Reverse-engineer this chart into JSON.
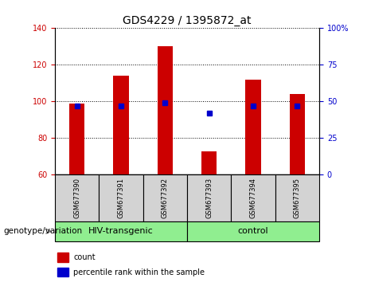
{
  "title": "GDS4229 / 1395872_at",
  "samples": [
    "GSM677390",
    "GSM677391",
    "GSM677392",
    "GSM677393",
    "GSM677394",
    "GSM677395"
  ],
  "count_values": [
    99,
    114,
    130,
    73,
    112,
    104
  ],
  "percentile_values": [
    47,
    47,
    49,
    42,
    47,
    47
  ],
  "ylim_left": [
    60,
    140
  ],
  "ylim_right": [
    0,
    100
  ],
  "yticks_left": [
    60,
    80,
    100,
    120,
    140
  ],
  "yticks_right": [
    0,
    25,
    50,
    75,
    100
  ],
  "ytick_labels_right": [
    "0",
    "25",
    "50",
    "75",
    "100%"
  ],
  "bar_color": "#cc0000",
  "dot_color": "#0000cc",
  "hiv_label": "HIV-transgenic",
  "control_label": "control",
  "hiv_color": "#90ee90",
  "control_color": "#90ee90",
  "group_label": "genotype/variation",
  "legend_count_label": "count",
  "legend_percentile_label": "percentile rank within the sample",
  "bar_width": 0.35,
  "title_fontsize": 10,
  "tick_fontsize": 7,
  "sample_fontsize": 6,
  "group_fontsize": 8,
  "legend_fontsize": 7,
  "group_text_fontsize": 7.5
}
